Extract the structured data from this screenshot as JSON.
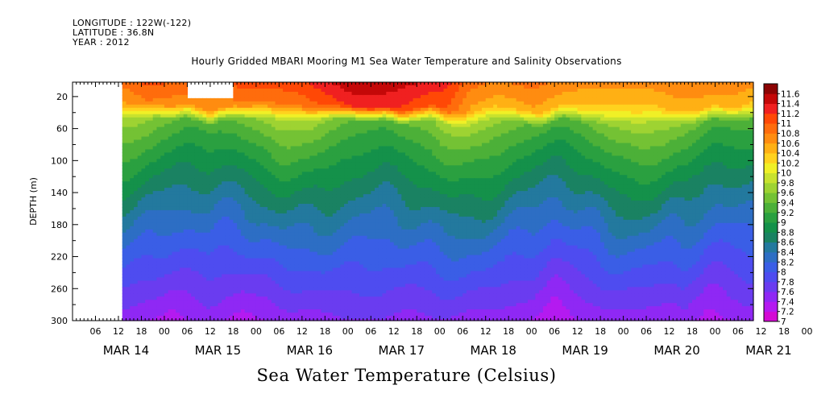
{
  "header": {
    "longitude": "LONGITUDE : 122W(-122)",
    "latitude": "LATITUDE : 36.8N",
    "year": "YEAR : 2012"
  },
  "chart_title": "Hourly Gridded MBARI Mooring M1 Sea Water Temperature and Salinity Observations",
  "bottom_title": "Sea Water Temperature (Celsius)",
  "chart_data": {
    "type": "heatmap",
    "title": "Hourly Gridded MBARI Mooring M1 Sea Water Temperature and Salinity Observations",
    "xlabel": "",
    "ylabel": "DEPTH (m)",
    "x_hour_ticks": [
      "06",
      "12",
      "18",
      "00",
      "06",
      "12",
      "18",
      "00",
      "06",
      "12",
      "18",
      "00",
      "06",
      "12",
      "18",
      "00",
      "06",
      "12",
      "18",
      "00",
      "06",
      "12",
      "18",
      "00",
      "06",
      "12",
      "18",
      "00",
      "06",
      "12",
      "18",
      "00",
      "06"
    ],
    "x_day_labels": [
      "MAR 14",
      "MAR 15",
      "MAR 16",
      "MAR 17",
      "MAR 18",
      "MAR 19",
      "MAR 20",
      "MAR 21"
    ],
    "x_range_hours_from_mar14_00": [
      0,
      178
    ],
    "data_start_hour": 13,
    "y_ticks": [
      20,
      60,
      100,
      140,
      180,
      220,
      260,
      300
    ],
    "ylim": [
      300,
      2
    ],
    "colorbar_levels": [
      7,
      7.2,
      7.4,
      7.6,
      7.8,
      8,
      8.2,
      8.4,
      8.6,
      8.8,
      9,
      9.2,
      9.4,
      9.6,
      9.8,
      10,
      10.2,
      10.4,
      10.6,
      10.8,
      11,
      11.2,
      11.4,
      11.6
    ],
    "colorbar_colors": [
      "#d40ad4",
      "#b41af0",
      "#8f28f4",
      "#6a3cf0",
      "#4e4cf0",
      "#3a5ee6",
      "#2d6ec4",
      "#23799e",
      "#1a8262",
      "#14914a",
      "#2aa040",
      "#4cb038",
      "#74c234",
      "#9ed332",
      "#c8e22e",
      "#f0f026",
      "#ffd21e",
      "#ffb014",
      "#ff8c10",
      "#ff6c0c",
      "#ff4806",
      "#f02020",
      "#c40808",
      "#8c0404"
    ],
    "mixed_layer_depth_m": [
      [
        13,
        28
      ],
      [
        18,
        30
      ],
      [
        22,
        29
      ],
      [
        26,
        32
      ],
      [
        30,
        29
      ],
      [
        34,
        35
      ],
      [
        36,
        40
      ],
      [
        38,
        34
      ],
      [
        42,
        30
      ],
      [
        46,
        30
      ],
      [
        50,
        28
      ],
      [
        54,
        32
      ],
      [
        58,
        30
      ],
      [
        62,
        33
      ],
      [
        66,
        31
      ],
      [
        70,
        30
      ],
      [
        74,
        32
      ],
      [
        78,
        34
      ],
      [
        82,
        32
      ],
      [
        86,
        38
      ],
      [
        90,
        34
      ],
      [
        94,
        30
      ],
      [
        98,
        38
      ],
      [
        102,
        40
      ],
      [
        106,
        35
      ],
      [
        110,
        30
      ],
      [
        114,
        33
      ],
      [
        118,
        36
      ],
      [
        122,
        40
      ],
      [
        124,
        38
      ],
      [
        128,
        30
      ],
      [
        132,
        33
      ],
      [
        136,
        35
      ],
      [
        140,
        36
      ],
      [
        144,
        34
      ],
      [
        148,
        36
      ],
      [
        152,
        33
      ],
      [
        156,
        36
      ],
      [
        160,
        38
      ],
      [
        164,
        36
      ],
      [
        168,
        30
      ],
      [
        172,
        34
      ],
      [
        176,
        32
      ],
      [
        178,
        30
      ]
    ],
    "surface_temperature_c": [
      [
        13,
        10.9
      ],
      [
        20,
        11.1
      ],
      [
        28,
        11.0
      ],
      [
        36,
        11.0
      ],
      [
        44,
        11.1
      ],
      [
        52,
        11.1
      ],
      [
        60,
        11.2
      ],
      [
        64,
        11.3
      ],
      [
        70,
        11.5
      ],
      [
        74,
        11.6
      ],
      [
        80,
        11.6
      ],
      [
        86,
        11.5
      ],
      [
        92,
        11.4
      ],
      [
        98,
        11.3
      ],
      [
        104,
        10.9
      ],
      [
        112,
        10.8
      ],
      [
        120,
        10.9
      ],
      [
        126,
        10.8
      ],
      [
        134,
        10.7
      ],
      [
        142,
        10.7
      ],
      [
        150,
        10.7
      ],
      [
        158,
        10.8
      ],
      [
        166,
        10.8
      ],
      [
        172,
        10.8
      ],
      [
        178,
        10.7
      ]
    ],
    "bottom_temperature_c": [
      [
        13,
        7.5
      ],
      [
        20,
        7.4
      ],
      [
        26,
        7.3
      ],
      [
        30,
        7.4
      ],
      [
        36,
        7.5
      ],
      [
        44,
        7.3
      ],
      [
        50,
        7.4
      ],
      [
        56,
        7.5
      ],
      [
        64,
        7.5
      ],
      [
        72,
        7.6
      ],
      [
        80,
        7.6
      ],
      [
        88,
        7.5
      ],
      [
        96,
        7.6
      ],
      [
        104,
        7.5
      ],
      [
        112,
        7.5
      ],
      [
        120,
        7.4
      ],
      [
        126,
        7.2
      ],
      [
        132,
        7.4
      ],
      [
        140,
        7.5
      ],
      [
        148,
        7.5
      ],
      [
        156,
        7.4
      ],
      [
        160,
        7.5
      ],
      [
        166,
        7.3
      ],
      [
        172,
        7.4
      ],
      [
        178,
        7.5
      ]
    ],
    "missing_blocks": [
      {
        "x_hours": [
          0,
          13
        ],
        "depth_m": [
          2,
          300
        ]
      },
      {
        "x_hours": [
          30,
          42
        ],
        "depth_m": [
          2,
          20
        ]
      }
    ]
  }
}
